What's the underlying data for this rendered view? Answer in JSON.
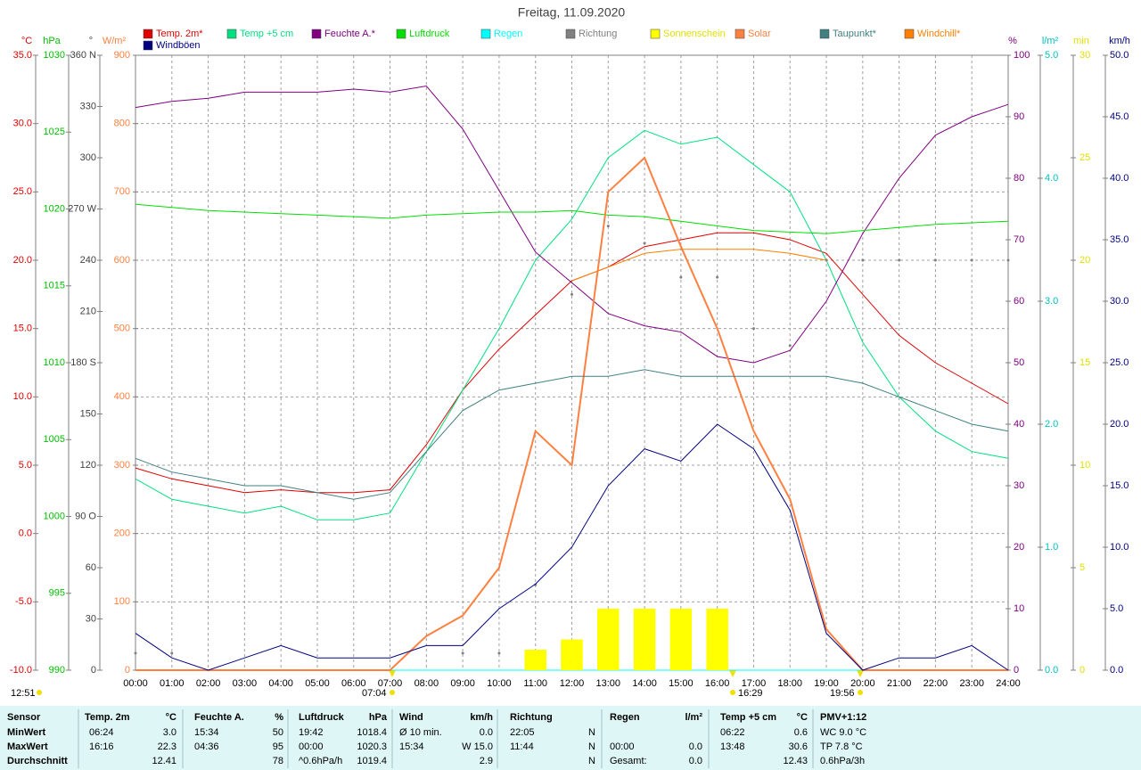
{
  "chart_data": {
    "type": "line",
    "title": "Freitag, 11.09.2020",
    "grid": true,
    "x": [
      "00:00",
      "01:00",
      "02:00",
      "03:00",
      "04:00",
      "05:00",
      "06:00",
      "07:00",
      "08:00",
      "09:00",
      "10:00",
      "11:00",
      "12:00",
      "13:00",
      "14:00",
      "15:00",
      "16:00",
      "17:00",
      "18:00",
      "19:00",
      "20:00",
      "21:00",
      "22:00",
      "23:00",
      "24:00"
    ],
    "annotations": [
      "12:51",
      "07:04",
      "16:29",
      "19:56"
    ],
    "axes": {
      "temp": {
        "label": "°C",
        "color": "#e00000",
        "lim": [
          -10,
          35
        ],
        "ticks": [
          {
            "value": -10,
            "label": "-10.0"
          },
          {
            "value": -5,
            "label": "-5.0"
          },
          {
            "value": 0,
            "label": "0.0"
          },
          {
            "value": 5,
            "label": "5.0"
          },
          {
            "value": 10,
            "label": "10.0"
          },
          {
            "value": 15,
            "label": "15.0"
          },
          {
            "value": 20,
            "label": "20.0"
          },
          {
            "value": 25,
            "label": "25.0"
          },
          {
            "value": 30,
            "label": "30.0"
          },
          {
            "value": 35,
            "label": "35.0"
          }
        ]
      },
      "press": {
        "label": "hPa",
        "color": "#00c000",
        "lim": [
          990,
          1030
        ],
        "ticks": [
          990,
          995,
          1000,
          1005,
          1010,
          1015,
          1020,
          1025,
          1030
        ]
      },
      "dir": {
        "label": "°",
        "color": "#404040",
        "lim": [
          0,
          360
        ],
        "ticks": [
          0,
          30,
          60,
          {
            "value": 90,
            "label": "90 O"
          },
          120,
          150,
          {
            "value": 180,
            "label": "180 S"
          },
          210,
          240,
          {
            "value": 270,
            "label": "270 W"
          },
          300,
          330,
          {
            "value": 360,
            "label": "360 N"
          }
        ]
      },
      "solar": {
        "label": "W/m²",
        "color": "#ff8040",
        "lim": [
          0,
          900
        ],
        "ticks": [
          0,
          100,
          200,
          300,
          400,
          500,
          600,
          700,
          800,
          900
        ]
      },
      "hum": {
        "label": "%",
        "color": "#800080",
        "lim": [
          0,
          100
        ],
        "ticks": [
          0,
          10,
          20,
          30,
          40,
          50,
          60,
          70,
          80,
          90,
          100
        ]
      },
      "rain": {
        "label": "l/m²",
        "color": "#00c0c0",
        "lim": [
          0,
          5
        ],
        "ticks": [
          {
            "value": 0,
            "label": "0.0"
          },
          {
            "value": 1,
            "label": "1.0"
          },
          {
            "value": 2,
            "label": "2.0"
          },
          {
            "value": 3,
            "label": "3.0"
          },
          {
            "value": 4,
            "label": "4.0"
          },
          {
            "value": 5,
            "label": "5.0"
          }
        ]
      },
      "sun": {
        "label": "min",
        "color": "#e0e000",
        "lim": [
          0,
          30
        ],
        "ticks": [
          0,
          5,
          10,
          15,
          20,
          25,
          30
        ]
      },
      "wind": {
        "label": "km/h",
        "color": "#000080",
        "lim": [
          0,
          50
        ],
        "ticks": [
          {
            "value": 0,
            "label": "0.0"
          },
          {
            "value": 5,
            "label": "5.0"
          },
          {
            "value": 10,
            "label": "10.0"
          },
          {
            "value": 15,
            "label": "15.0"
          },
          {
            "value": 20,
            "label": "20.0"
          },
          {
            "value": 25,
            "label": "25.0"
          },
          {
            "value": 30,
            "label": "30.0"
          },
          {
            "value": 35,
            "label": "35.0"
          },
          {
            "value": 40,
            "label": "40.0"
          },
          {
            "value": 45,
            "label": "45.0"
          },
          {
            "value": 50,
            "label": "50.0"
          }
        ]
      }
    },
    "series": [
      {
        "name": "Temp. 2m*",
        "color": "#e00000",
        "axis": "temp",
        "style": "line",
        "values": [
          4.8,
          4.0,
          3.5,
          3.0,
          3.2,
          3.0,
          3.0,
          3.2,
          6.5,
          10.5,
          13.5,
          16,
          18.5,
          19.5,
          21,
          21.5,
          22,
          22,
          21.5,
          20.5,
          17.5,
          14.5,
          12.5,
          11,
          9.5
        ]
      },
      {
        "name": "Temp +5 cm",
        "color": "#00e080",
        "axis": "temp",
        "style": "line",
        "values": [
          4.0,
          2.5,
          2.0,
          1.5,
          2.0,
          1.0,
          1.0,
          1.5,
          6.0,
          10.5,
          15,
          20,
          23,
          27.5,
          29.5,
          28.5,
          29,
          27,
          25,
          20,
          14,
          10,
          7.5,
          6,
          5.5
        ]
      },
      {
        "name": "Feuchte A.*",
        "color": "#800080",
        "axis": "hum",
        "style": "line",
        "values": [
          91.5,
          92.5,
          93,
          94,
          94,
          94,
          94.5,
          94,
          95,
          88,
          78,
          68,
          63,
          58,
          56,
          55,
          51,
          50,
          52,
          60,
          71,
          80,
          87,
          90,
          92
        ]
      },
      {
        "name": "Luftdruck",
        "color": "#00e000",
        "axis": "press",
        "style": "line",
        "values": [
          1020.3,
          1020.1,
          1019.9,
          1019.8,
          1019.7,
          1019.6,
          1019.5,
          1019.4,
          1019.6,
          1019.7,
          1019.8,
          1019.8,
          1019.9,
          1019.6,
          1019.5,
          1019.2,
          1018.9,
          1018.6,
          1018.5,
          1018.4,
          1018.6,
          1018.8,
          1019.0,
          1019.1,
          1019.2
        ]
      },
      {
        "name": "Regen",
        "color": "#00ffff",
        "axis": "rain",
        "style": "line",
        "values": [
          0,
          0,
          0,
          0,
          0,
          0,
          0,
          0,
          0,
          0,
          0,
          0,
          0,
          0,
          0,
          0,
          0,
          0,
          0,
          0,
          0,
          0,
          0,
          0,
          0
        ]
      },
      {
        "name": "Richtung",
        "color": "#808080",
        "axis": "dir",
        "style": "dots",
        "values": [
          10,
          10,
          null,
          null,
          null,
          null,
          null,
          null,
          null,
          10,
          10,
          50,
          220,
          260,
          250,
          230,
          230,
          200,
          190,
          240,
          240,
          240,
          240,
          240,
          240
        ]
      },
      {
        "name": "Sonnenschein",
        "color": "#ffff00",
        "axis": "sun",
        "style": "bars",
        "values": [
          0,
          0,
          0,
          0,
          0,
          0,
          0,
          0,
          0,
          0,
          0,
          1,
          1.5,
          3,
          3,
          3,
          3,
          0,
          0,
          0,
          0,
          0,
          0,
          0,
          0
        ]
      },
      {
        "name": "Solar",
        "color": "#ff8040",
        "axis": "solar",
        "style": "line",
        "values": [
          0,
          0,
          0,
          0,
          0,
          0,
          0,
          0,
          50,
          80,
          150,
          350,
          300,
          700,
          750,
          620,
          500,
          350,
          250,
          60,
          0,
          0,
          0,
          0,
          0
        ]
      },
      {
        "name": "Taupunkt*",
        "color": "#408080",
        "axis": "temp",
        "style": "line",
        "values": [
          5.5,
          4.5,
          4.0,
          3.5,
          3.5,
          3.0,
          2.5,
          3.0,
          6.0,
          9.0,
          10.5,
          11,
          11.5,
          11.5,
          12,
          11.5,
          11.5,
          11.5,
          11.5,
          11.5,
          11,
          10,
          9,
          8,
          7.5
        ]
      },
      {
        "name": "Windchill*",
        "color": "#ff8000",
        "axis": "temp",
        "style": "line",
        "values": [
          null,
          null,
          null,
          null,
          null,
          null,
          null,
          null,
          null,
          null,
          null,
          null,
          18.5,
          19.5,
          20.5,
          20.8,
          20.8,
          20.8,
          20.5,
          20.0,
          null,
          null,
          null,
          null,
          null
        ]
      },
      {
        "name": "Windböen",
        "color": "#000080",
        "axis": "wind",
        "style": "line",
        "values": [
          3,
          1,
          0,
          1,
          2,
          1,
          1,
          1,
          2,
          2,
          5,
          7,
          10,
          15,
          18,
          17,
          20,
          18,
          13,
          3,
          0,
          1,
          1,
          2,
          0
        ]
      }
    ]
  },
  "table": {
    "headers": [
      "Sensor",
      "Temp. 2m",
      "°C",
      "Feuchte A.",
      "%",
      "Luftdruck",
      "hPa",
      "Wind",
      "km/h",
      "Richtung",
      null,
      "Regen",
      "l/m²",
      "Temp +5 cm",
      "°C",
      "PMV+1:12"
    ],
    "rows": [
      [
        "MinWert",
        "06:24",
        "3.0",
        "15:34",
        "50",
        "19:42",
        "1018.4",
        "Ø 10 min.",
        "0.0",
        "22:05",
        "N",
        null,
        null,
        "06:22",
        "0.6",
        "WC 9.0 °C"
      ],
      [
        "MaxWert",
        "16:16",
        "22.3",
        "04:36",
        "95",
        "00:00",
        "1020.3",
        "15:34",
        "W 15.0",
        "11:44",
        "N",
        "00:00",
        "0.0",
        "13:48",
        "30.6",
        "TP 7.8 °C"
      ],
      [
        "Durchschnitt",
        null,
        "12.41",
        null,
        "78",
        "^0.6hPa/h",
        "1019.4",
        null,
        "2.9",
        null,
        "N",
        "Gesamt:",
        "0.0",
        null,
        "12.43",
        "0.6hPa/3h"
      ]
    ]
  }
}
